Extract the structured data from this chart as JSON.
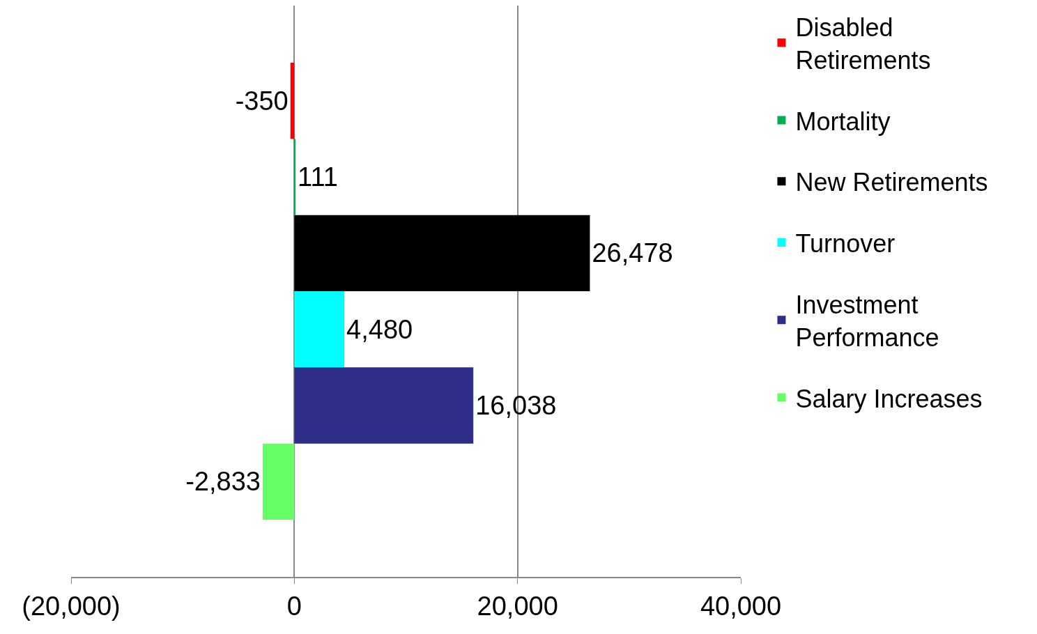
{
  "chart_data": {
    "type": "bar",
    "orientation": "horizontal",
    "categories": [
      null
    ],
    "series": [
      {
        "name": "Disabled Retirements",
        "color": "#ff0000",
        "values": [
          -350
        ],
        "value_labels": [
          "-350"
        ]
      },
      {
        "name": "Mortality",
        "color": "#00b050",
        "values": [
          111
        ],
        "value_labels": [
          "111"
        ]
      },
      {
        "name": "New Retirements",
        "color": "#000000",
        "values": [
          26478
        ],
        "value_labels": [
          "26,478"
        ]
      },
      {
        "name": "Turnover",
        "color": "#00ffff",
        "values": [
          4480
        ],
        "value_labels": [
          "4,480"
        ]
      },
      {
        "name": "Investment Performance",
        "color": "#2e2e88",
        "values": [
          16038
        ],
        "value_labels": [
          "16,038"
        ]
      },
      {
        "name": "Salary Increases",
        "color": "#66ff66",
        "values": [
          -2833
        ],
        "value_labels": [
          "-2,833"
        ]
      }
    ],
    "xlim": [
      -20000,
      40000
    ],
    "xticks": [
      {
        "value": -20000,
        "label": "(20,000)"
      },
      0,
      {
        "value": 20000,
        "label": "20,000"
      },
      {
        "value": 40000,
        "label": "40,000"
      }
    ],
    "grid": "x",
    "legend": "right"
  }
}
